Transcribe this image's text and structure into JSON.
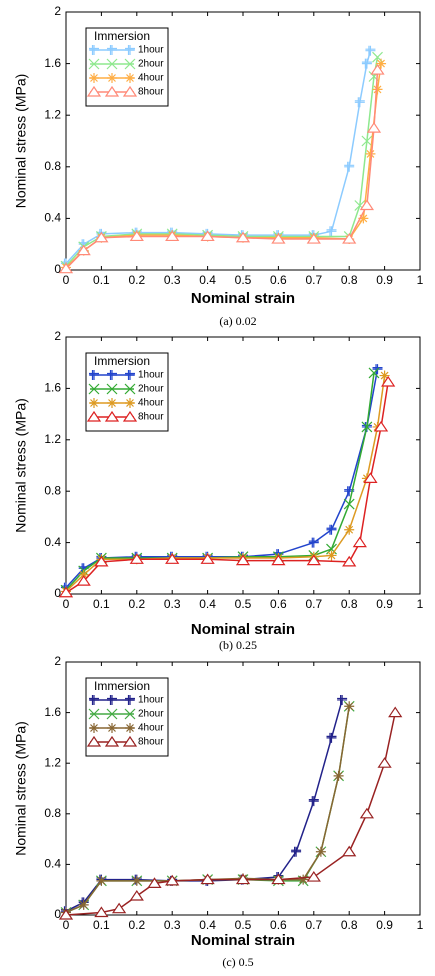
{
  "chart_data": [
    {
      "type": "line",
      "caption": "(a)  0.02",
      "xlabel": "Nominal strain",
      "ylabel": "Nominal stress (MPa)",
      "legend_title": "Immersion",
      "legend": "upper left",
      "xlim": [
        0,
        1
      ],
      "xticks": [
        0,
        0.1,
        0.2,
        0.3,
        0.4,
        0.5,
        0.6,
        0.7,
        0.8,
        0.9,
        1
      ],
      "ylim": [
        0,
        2
      ],
      "yticks": [
        0,
        0.4,
        0.8,
        1.2,
        1.6,
        2
      ],
      "series": [
        {
          "name": "1hour",
          "color": "#8ccbff",
          "marker": "plus",
          "x": [
            0,
            0.05,
            0.1,
            0.2,
            0.3,
            0.4,
            0.5,
            0.6,
            0.7,
            0.75,
            0.8,
            0.83,
            0.85,
            0.86
          ],
          "values": [
            0.05,
            0.2,
            0.28,
            0.29,
            0.29,
            0.28,
            0.27,
            0.27,
            0.27,
            0.3,
            0.8,
            1.3,
            1.6,
            1.7
          ]
        },
        {
          "name": "2hour",
          "color": "#8ee88e",
          "marker": "x",
          "x": [
            0,
            0.05,
            0.1,
            0.2,
            0.3,
            0.4,
            0.5,
            0.6,
            0.7,
            0.8,
            0.83,
            0.85,
            0.87,
            0.88
          ],
          "values": [
            0.03,
            0.18,
            0.26,
            0.28,
            0.28,
            0.27,
            0.26,
            0.26,
            0.26,
            0.26,
            0.5,
            1.0,
            1.5,
            1.65
          ]
        },
        {
          "name": "4hour",
          "color": "#ffae45",
          "marker": "asterisk",
          "x": [
            0,
            0.05,
            0.1,
            0.2,
            0.3,
            0.4,
            0.5,
            0.6,
            0.7,
            0.8,
            0.84,
            0.86,
            0.88,
            0.89
          ],
          "values": [
            0.02,
            0.15,
            0.25,
            0.27,
            0.27,
            0.26,
            0.25,
            0.25,
            0.25,
            0.24,
            0.4,
            0.9,
            1.4,
            1.6
          ]
        },
        {
          "name": "8hour",
          "color": "#ff8a78",
          "marker": "triangle",
          "x": [
            0,
            0.05,
            0.1,
            0.2,
            0.3,
            0.4,
            0.5,
            0.6,
            0.7,
            0.8,
            0.85,
            0.87,
            0.88
          ],
          "values": [
            0.01,
            0.15,
            0.25,
            0.26,
            0.26,
            0.26,
            0.25,
            0.24,
            0.24,
            0.24,
            0.5,
            1.1,
            1.55
          ]
        }
      ]
    },
    {
      "type": "line",
      "caption": "(b)  0.25",
      "xlabel": "Nominal strain",
      "ylabel": "Nominal stress (MPa)",
      "legend_title": "Immersion",
      "legend": "upper left",
      "xlim": [
        0,
        1
      ],
      "xticks": [
        0,
        0.1,
        0.2,
        0.3,
        0.4,
        0.5,
        0.6,
        0.7,
        0.8,
        0.9,
        1
      ],
      "ylim": [
        0,
        2
      ],
      "yticks": [
        0,
        0.4,
        0.8,
        1.2,
        1.6,
        2
      ],
      "series": [
        {
          "name": "1hour",
          "color": "#2244cc",
          "marker": "plus",
          "x": [
            0,
            0.05,
            0.1,
            0.2,
            0.3,
            0.4,
            0.5,
            0.6,
            0.7,
            0.75,
            0.8,
            0.85,
            0.88
          ],
          "values": [
            0.05,
            0.2,
            0.28,
            0.29,
            0.29,
            0.29,
            0.29,
            0.31,
            0.4,
            0.5,
            0.8,
            1.3,
            1.75
          ]
        },
        {
          "name": "2hour",
          "color": "#33aa33",
          "marker": "x",
          "x": [
            0,
            0.05,
            0.1,
            0.2,
            0.3,
            0.4,
            0.5,
            0.6,
            0.7,
            0.75,
            0.8,
            0.85,
            0.87
          ],
          "values": [
            0.03,
            0.18,
            0.28,
            0.28,
            0.28,
            0.28,
            0.29,
            0.29,
            0.3,
            0.35,
            0.7,
            1.3,
            1.72
          ]
        },
        {
          "name": "4hour",
          "color": "#dd9a22",
          "marker": "asterisk",
          "x": [
            0,
            0.05,
            0.1,
            0.2,
            0.3,
            0.4,
            0.5,
            0.6,
            0.7,
            0.75,
            0.8,
            0.85,
            0.88,
            0.9
          ],
          "values": [
            0.02,
            0.15,
            0.27,
            0.27,
            0.28,
            0.28,
            0.28,
            0.28,
            0.29,
            0.3,
            0.5,
            0.9,
            1.3,
            1.7
          ]
        },
        {
          "name": "8hour",
          "color": "#dd2222",
          "marker": "triangle",
          "x": [
            0,
            0.05,
            0.1,
            0.2,
            0.3,
            0.4,
            0.5,
            0.6,
            0.7,
            0.8,
            0.83,
            0.86,
            0.89,
            0.91
          ],
          "values": [
            0.01,
            0.1,
            0.25,
            0.27,
            0.27,
            0.27,
            0.26,
            0.26,
            0.26,
            0.25,
            0.4,
            0.9,
            1.3,
            1.65
          ]
        }
      ]
    },
    {
      "type": "line",
      "caption": "(c)  0.5",
      "xlabel": "Nominal strain",
      "ylabel": "Nominal stress (MPa)",
      "legend_title": "Immersion",
      "legend": "upper left",
      "xlim": [
        0,
        1
      ],
      "xticks": [
        0,
        0.1,
        0.2,
        0.3,
        0.4,
        0.5,
        0.6,
        0.7,
        0.8,
        0.9,
        1
      ],
      "ylim": [
        0,
        2
      ],
      "yticks": [
        0,
        0.4,
        0.8,
        1.2,
        1.6,
        2
      ],
      "series": [
        {
          "name": "1hour",
          "color": "#22228a",
          "marker": "plus",
          "x": [
            0,
            0.05,
            0.1,
            0.2,
            0.3,
            0.4,
            0.5,
            0.6,
            0.65,
            0.7,
            0.75,
            0.78
          ],
          "values": [
            0.03,
            0.1,
            0.28,
            0.28,
            0.27,
            0.27,
            0.28,
            0.3,
            0.5,
            0.9,
            1.4,
            1.7
          ]
        },
        {
          "name": "2hour",
          "color": "#44aa44",
          "marker": "x",
          "x": [
            0,
            0.05,
            0.1,
            0.2,
            0.3,
            0.4,
            0.5,
            0.6,
            0.67,
            0.72,
            0.77,
            0.8
          ],
          "values": [
            0.02,
            0.08,
            0.27,
            0.27,
            0.27,
            0.28,
            0.28,
            0.27,
            0.27,
            0.5,
            1.1,
            1.65
          ]
        },
        {
          "name": "4hour",
          "color": "#886633",
          "marker": "asterisk",
          "x": [
            0,
            0.05,
            0.1,
            0.2,
            0.3,
            0.4,
            0.5,
            0.6,
            0.67,
            0.72,
            0.77,
            0.8
          ],
          "values": [
            0.02,
            0.08,
            0.27,
            0.27,
            0.27,
            0.28,
            0.29,
            0.28,
            0.28,
            0.5,
            1.1,
            1.65
          ]
        },
        {
          "name": "8hour",
          "color": "#992222",
          "marker": "triangle",
          "x": [
            0,
            0.1,
            0.15,
            0.2,
            0.25,
            0.3,
            0.4,
            0.5,
            0.6,
            0.7,
            0.8,
            0.85,
            0.9,
            0.93
          ],
          "values": [
            0,
            0.02,
            0.05,
            0.15,
            0.25,
            0.27,
            0.28,
            0.28,
            0.28,
            0.3,
            0.5,
            0.8,
            1.2,
            1.6
          ]
        }
      ]
    }
  ]
}
